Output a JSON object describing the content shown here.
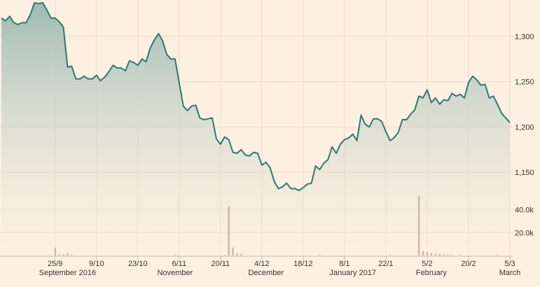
{
  "colors": {
    "background": "#fcf0e2",
    "grid": "#ebdcc8",
    "line": "#2e7872",
    "area_top": "#9cbab3",
    "area_bottom": "#fcf0e2",
    "volume": "#c9b8a8",
    "axis": "#c7b8a6"
  },
  "chart_data": [
    {
      "type": "area",
      "y_axis_side": "right",
      "grid": true,
      "ylim": [
        1120,
        1340
      ],
      "y_ticks": [
        1150,
        1200,
        1250,
        1300
      ],
      "y_tick_labels": [
        "1,150",
        "1,200",
        "1,250",
        "1,300"
      ],
      "x_ticks": [
        {
          "index": 13,
          "label": "25/9"
        },
        {
          "index": 23,
          "label": "9/10"
        },
        {
          "index": 33,
          "label": "23/10"
        },
        {
          "index": 43,
          "label": "6/11"
        },
        {
          "index": 53,
          "label": "20/11"
        },
        {
          "index": 63,
          "label": "4/12"
        },
        {
          "index": 73,
          "label": "18/12"
        },
        {
          "index": 83,
          "label": "8/1"
        },
        {
          "index": 93,
          "label": "22/1"
        },
        {
          "index": 103,
          "label": "5/2"
        },
        {
          "index": 113,
          "label": "20/2"
        },
        {
          "index": 123,
          "label": "5/3"
        }
      ],
      "period_labels": [
        {
          "index": 16,
          "label": "September 2016"
        },
        {
          "index": 42,
          "label": "November"
        },
        {
          "index": 64,
          "label": "December"
        },
        {
          "index": 85,
          "label": "January 2017"
        },
        {
          "index": 104,
          "label": "February"
        },
        {
          "index": 123,
          "label": "March"
        }
      ],
      "values": [
        1320,
        1317,
        1322,
        1315,
        1313,
        1315,
        1315,
        1324,
        1337,
        1336,
        1337,
        1329,
        1320,
        1320,
        1316,
        1310,
        1266,
        1267,
        1253,
        1253,
        1256,
        1253,
        1253,
        1257,
        1251,
        1255,
        1261,
        1268,
        1265,
        1265,
        1262,
        1273,
        1271,
        1268,
        1275,
        1272,
        1287,
        1296,
        1303,
        1295,
        1280,
        1275,
        1275,
        1249,
        1223,
        1218,
        1223,
        1224,
        1210,
        1208,
        1209,
        1210,
        1187,
        1181,
        1189,
        1186,
        1172,
        1171,
        1175,
        1169,
        1168,
        1172,
        1171,
        1158,
        1161,
        1155,
        1140,
        1132,
        1134,
        1138,
        1132,
        1132,
        1130,
        1133,
        1137,
        1138,
        1157,
        1153,
        1160,
        1164,
        1178,
        1171,
        1181,
        1186,
        1188,
        1192,
        1185,
        1213,
        1203,
        1200,
        1209,
        1209,
        1206,
        1195,
        1185,
        1188,
        1194,
        1208,
        1208,
        1214,
        1219,
        1234,
        1232,
        1241,
        1227,
        1232,
        1225,
        1230,
        1229,
        1237,
        1234,
        1236,
        1232,
        1249,
        1256,
        1252,
        1246,
        1247,
        1232,
        1234,
        1225,
        1215,
        1210,
        1205
      ]
    },
    {
      "type": "bar",
      "series_role": "volume",
      "ylim": [
        0,
        52000
      ],
      "y_ticks": [
        20000,
        40000
      ],
      "y_tick_labels": [
        "20.0k",
        "40.0k"
      ],
      "values": [
        0,
        0,
        0,
        0,
        0,
        0,
        0,
        0,
        0,
        0,
        0,
        0,
        0,
        7000,
        1000,
        1000,
        2000,
        500,
        0,
        0,
        0,
        0,
        0,
        0,
        0,
        0,
        0,
        0,
        0,
        0,
        0,
        0,
        0,
        0,
        0,
        0,
        0,
        0,
        0,
        0,
        0,
        0,
        500,
        500,
        0,
        0,
        0,
        0,
        0,
        0,
        0,
        0,
        0,
        0,
        500,
        43000,
        7000,
        2000,
        1500,
        0,
        0,
        0,
        0,
        0,
        0,
        0,
        0,
        0,
        0,
        0,
        0,
        0,
        0,
        0,
        0,
        0,
        0,
        500,
        0,
        0,
        0,
        0,
        0,
        0,
        0,
        0,
        0,
        0,
        0,
        0,
        0,
        0,
        0,
        0,
        500,
        0,
        0,
        0,
        0,
        0,
        0,
        52000,
        4000,
        3000,
        2000,
        1500,
        1500,
        1000,
        800,
        500,
        0,
        500,
        0,
        0,
        0,
        0,
        0,
        0,
        0,
        0,
        500,
        0,
        0,
        0,
        0,
        0,
        0,
        0
      ]
    }
  ]
}
